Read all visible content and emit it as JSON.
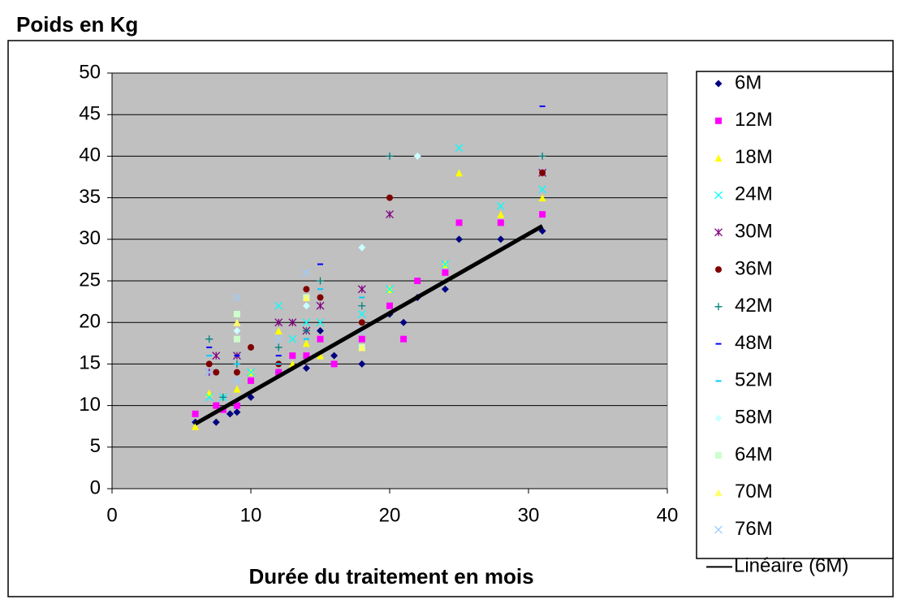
{
  "chart_data": {
    "type": "scatter",
    "title": "Poids en Kg",
    "x_label": "Durée du traitement en mois",
    "xlim": [
      0,
      40
    ],
    "xticks": [
      0,
      10,
      20,
      30,
      40
    ],
    "ylim": [
      0,
      50
    ],
    "yticks": [
      0,
      5,
      10,
      15,
      20,
      25,
      30,
      35,
      40,
      45,
      50
    ],
    "grid": true,
    "legend": "right",
    "background": "#c0c0c0",
    "series": [
      {
        "name": "6M",
        "color": "#000080",
        "marker": "diamond",
        "x": [
          6,
          7.5,
          8.5,
          9,
          10,
          12,
          14,
          15,
          16,
          18,
          20,
          21,
          22,
          24,
          25,
          28,
          31
        ],
        "values": [
          8,
          8,
          9,
          9.2,
          11,
          14,
          14.5,
          19,
          16,
          15,
          21,
          20,
          23,
          24,
          30,
          30,
          31
        ]
      },
      {
        "name": "12M",
        "color": "#ff00ff",
        "marker": "square",
        "x": [
          6,
          7.5,
          8,
          9,
          10,
          12,
          13,
          14,
          15,
          16,
          18,
          20,
          21,
          22,
          24,
          25,
          28,
          31
        ],
        "values": [
          9,
          10,
          9.5,
          10,
          13,
          14,
          16,
          16,
          18,
          15,
          18,
          22,
          18,
          25,
          26,
          32,
          32,
          33
        ]
      },
      {
        "name": "18M",
        "color": "#ffff00",
        "marker": "triangle",
        "x": [
          6,
          7,
          9,
          10,
          12,
          13,
          14,
          15,
          18,
          20,
          24,
          25,
          28,
          31
        ],
        "values": [
          7.5,
          11.5,
          12,
          14,
          19,
          15,
          17.5,
          16,
          17,
          24,
          27,
          38,
          33,
          35
        ]
      },
      {
        "name": "24M",
        "color": "#00ffff",
        "marker": "x",
        "x": [
          7,
          8,
          9,
          10,
          12,
          13,
          14,
          15,
          18,
          20,
          24,
          25,
          28,
          31
        ],
        "values": [
          11,
          11,
          16,
          14,
          22,
          18,
          20,
          20,
          21,
          24,
          27,
          41,
          34,
          36
        ]
      },
      {
        "name": "30M",
        "color": "#800080",
        "marker": "asterisk",
        "x": [
          7,
          7.5,
          9,
          12,
          13,
          14,
          15,
          18,
          20,
          31
        ],
        "values": [
          14,
          16,
          16,
          20,
          20,
          19,
          22,
          24,
          33,
          38
        ]
      },
      {
        "name": "36M",
        "color": "#800000",
        "marker": "circle",
        "x": [
          7,
          7.5,
          9,
          10,
          12,
          14,
          15,
          18,
          20,
          31
        ],
        "values": [
          15,
          14,
          14,
          17,
          15,
          24,
          23,
          20,
          35,
          38
        ]
      },
      {
        "name": "42M",
        "color": "#008080",
        "marker": "plus",
        "x": [
          7,
          8,
          9,
          12,
          14,
          15,
          18,
          20,
          31
        ],
        "values": [
          18,
          11,
          15,
          17,
          19,
          25,
          22,
          40,
          40
        ]
      },
      {
        "name": "48M",
        "color": "#0000ff",
        "marker": "dash",
        "x": [
          7,
          9,
          12,
          14,
          15,
          31
        ],
        "values": [
          17,
          16,
          16,
          22,
          27,
          46
        ]
      },
      {
        "name": "52M",
        "color": "#00ccff",
        "marker": "dash",
        "x": [
          7,
          9,
          12,
          14,
          15,
          18
        ],
        "values": [
          16,
          15,
          15,
          18,
          24,
          23
        ]
      },
      {
        "name": "58M",
        "color": "#ccffff",
        "marker": "diamond",
        "x": [
          9,
          14,
          18,
          22
        ],
        "values": [
          19,
          22,
          29,
          40
        ]
      },
      {
        "name": "64M",
        "color": "#ccffcc",
        "marker": "square",
        "x": [
          9,
          9,
          14,
          18
        ],
        "values": [
          21,
          18,
          23,
          17
        ]
      },
      {
        "name": "70M",
        "color": "#ffff66",
        "marker": "triangle",
        "x": [
          9,
          14,
          18
        ],
        "values": [
          20,
          23,
          17
        ]
      },
      {
        "name": "76M",
        "color": "#99ccff",
        "marker": "x",
        "x": [
          7,
          9,
          9,
          12,
          14,
          18
        ],
        "values": [
          14,
          23,
          13,
          18,
          26,
          19
        ]
      },
      {
        "name": "Linéaire (6M)",
        "color": "#000000",
        "marker": "line",
        "x": [
          6,
          31
        ],
        "values": [
          7.8,
          31.6
        ]
      }
    ]
  }
}
